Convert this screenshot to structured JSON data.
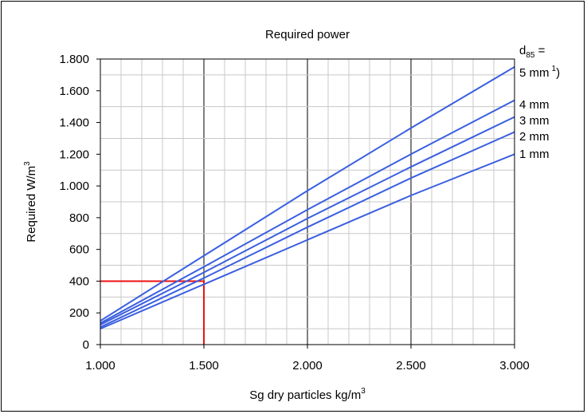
{
  "chart_data": {
    "type": "line",
    "title": "Required power",
    "xlabel": "Sg dry particles kg/m",
    "xlabel_sup": "3",
    "ylabel": "Required W/m",
    "ylabel_sup": "3",
    "xlim": [
      1000,
      3000
    ],
    "ylim": [
      0,
      1800
    ],
    "x_ticks": [
      1000,
      1500,
      2000,
      2500,
      3000
    ],
    "x_tick_labels": [
      "1.000",
      "1.500",
      "2.000",
      "2.500",
      "3.000"
    ],
    "y_ticks": [
      0,
      200,
      400,
      600,
      800,
      1000,
      1200,
      1400,
      1600,
      1800
    ],
    "y_tick_labels": [
      "0",
      "200",
      "400",
      "600",
      "800",
      "1.000",
      "1.200",
      "1.400",
      "1.600",
      "1.800"
    ],
    "x_minor_step": 100,
    "y_minor_step": 100,
    "grid": true,
    "legend_title": {
      "main": "d",
      "sub": "85",
      "suffix": " ="
    },
    "series": [
      {
        "name": "5 mm",
        "name_sup": "1",
        "name_suffix": ")",
        "color": "#3a5fe0",
        "x": [
          1000,
          1500,
          2000,
          2500,
          3000
        ],
        "y": [
          150,
          560,
          970,
          1365,
          1750
        ]
      },
      {
        "name": "4 mm",
        "color": "#3a5fe0",
        "x": [
          1000,
          1500,
          2000,
          2500,
          3000
        ],
        "y": [
          135,
          490,
          850,
          1200,
          1540
        ]
      },
      {
        "name": "3 mm",
        "color": "#3a5fe0",
        "x": [
          1000,
          1500,
          2000,
          2500,
          3000
        ],
        "y": [
          125,
          455,
          795,
          1120,
          1435
        ]
      },
      {
        "name": "2 mm",
        "color": "#3a5fe0",
        "x": [
          1000,
          1500,
          2000,
          2500,
          3000
        ],
        "y": [
          110,
          420,
          740,
          1050,
          1340
        ]
      },
      {
        "name": "1 mm",
        "color": "#3a5fe0",
        "x": [
          1000,
          1500,
          2000,
          2500,
          3000
        ],
        "y": [
          100,
          380,
          660,
          940,
          1200
        ]
      }
    ],
    "marker": {
      "color": "#ee1111",
      "x": 1500,
      "y": 400
    }
  }
}
